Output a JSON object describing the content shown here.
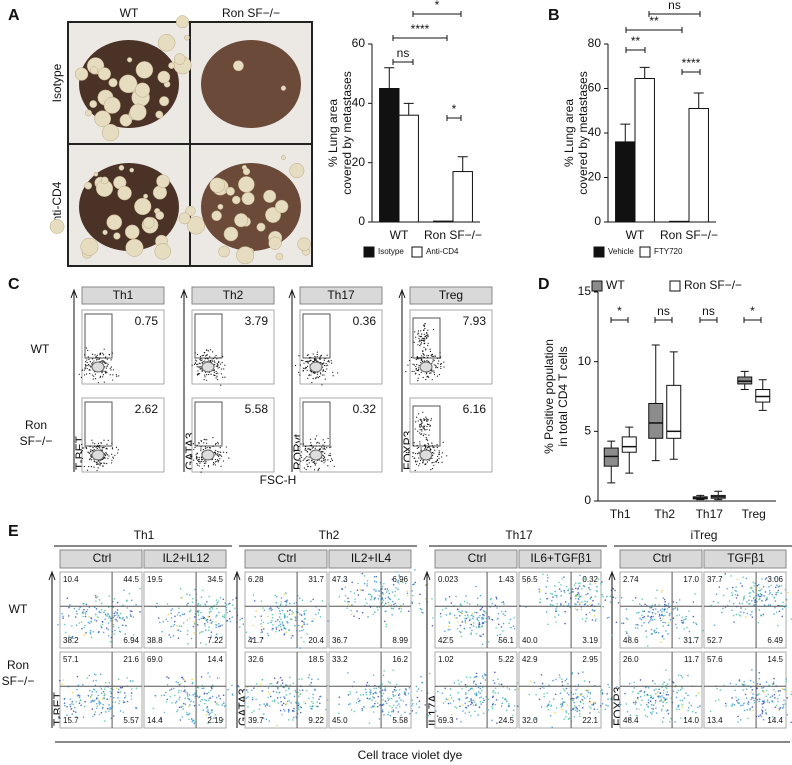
{
  "panel_labels": [
    "A",
    "B",
    "C",
    "D",
    "E"
  ],
  "panel_a": {
    "columns": [
      "WT",
      "Ron SF−/−"
    ],
    "rows": [
      "Isotype",
      "Anti-CD4"
    ]
  },
  "chart_data": [
    {
      "type": "bar",
      "ylabel": [
        "% Lung area",
        "covered by metastases"
      ],
      "categories": [
        "WT",
        "Ron SF−/−"
      ],
      "series": [
        {
          "name": "Isotype",
          "color": "#111111",
          "values": [
            45,
            0.3
          ],
          "errors": [
            7,
            null
          ]
        },
        {
          "name": "Anti-CD4",
          "color": "#ffffff",
          "values": [
            36,
            17
          ],
          "errors": [
            4,
            5
          ]
        }
      ],
      "ylim": [
        0,
        60
      ],
      "yticks": [
        0,
        20,
        40,
        60
      ],
      "annotations": [
        "ns",
        "****",
        "*",
        "*"
      ]
    },
    {
      "type": "bar",
      "ylabel": [
        "% Lung area",
        "covered by metastases"
      ],
      "categories": [
        "WT",
        "Ron SF−/−"
      ],
      "series": [
        {
          "name": "Vehicle",
          "color": "#111111",
          "values": [
            36,
            0.3
          ],
          "errors": [
            8,
            null
          ]
        },
        {
          "name": "FTY720",
          "color": "#ffffff",
          "values": [
            64.5,
            51
          ],
          "errors": [
            5,
            7
          ]
        }
      ],
      "ylim": [
        0,
        80
      ],
      "yticks": [
        0,
        20,
        40,
        60,
        80
      ],
      "annotations": [
        "ns",
        "**",
        "**",
        "****"
      ]
    },
    {
      "type": "box",
      "ylabel": [
        "% Positive population",
        "in total CD4 T cells"
      ],
      "categories": [
        "Th1",
        "Th2",
        "Th17",
        "Treg"
      ],
      "series": [
        {
          "name": "WT",
          "color": "#8c8c8c",
          "stats": [
            [
              1.3,
              2.5,
              3.2,
              3.8,
              4.3
            ],
            [
              2.9,
              4.5,
              5.6,
              7.0,
              11.2
            ],
            [
              0.1,
              0.15,
              0.2,
              0.3,
              0.4
            ],
            [
              8.0,
              8.4,
              8.6,
              8.9,
              9.3
            ]
          ]
        },
        {
          "name": "Ron SF−/−",
          "color": "#ffffff",
          "stats": [
            [
              2.0,
              3.5,
              3.9,
              4.6,
              5.3
            ],
            [
              3.0,
              4.5,
              5.0,
              8.3,
              10.7
            ],
            [
              0.1,
              0.2,
              0.3,
              0.4,
              0.7
            ],
            [
              6.5,
              7.1,
              7.5,
              8.0,
              8.7
            ]
          ]
        }
      ],
      "ylim": [
        0,
        15
      ],
      "yticks": [
        0,
        5,
        10,
        15
      ],
      "annotations": [
        "*",
        "ns",
        "ns",
        "*"
      ]
    }
  ],
  "panel_c": {
    "columns": [
      "Th1",
      "Th2",
      "Th17",
      "Treg"
    ],
    "rows": [
      [
        "WT"
      ],
      [
        "Ron",
        "SF−/−"
      ]
    ],
    "y_labels": [
      "T-BET",
      "GATA3",
      "RORγt",
      "FOXP3"
    ],
    "x_label": "FSC-H",
    "values": [
      [
        "0.75",
        "3.79",
        "0.36",
        "7.93"
      ],
      [
        "2.62",
        "5.58",
        "0.32",
        "6.16"
      ]
    ]
  },
  "panel_e": {
    "rows": [
      [
        "WT"
      ],
      [
        "Ron",
        "SF−/−"
      ]
    ],
    "x_label": "Cell trace violet dye",
    "groups": [
      {
        "title": "Th1",
        "columns": [
          "Ctrl",
          "IL2+IL12"
        ],
        "y_label": "T-BET",
        "values": [
          [
            [
              "10.4",
              "44.5",
              "38.2",
              "6.94"
            ],
            [
              "19.5",
              "34.5",
              "38.8",
              "7.22"
            ]
          ],
          [
            [
              "57.1",
              "21.6",
              "15.7",
              "5.57"
            ],
            [
              "69.0",
              "14.4",
              "14.4",
              "2.19"
            ]
          ]
        ]
      },
      {
        "title": "Th2",
        "columns": [
          "Ctrl",
          "IL2+IL4"
        ],
        "y_label": "GATA3",
        "values": [
          [
            [
              "6.28",
              "31.7",
              "41.7",
              "20.4"
            ],
            [
              "47.3",
              "6.96",
              "36.7",
              "8.99"
            ]
          ],
          [
            [
              "32.6",
              "18.5",
              "39.7",
              "9.22"
            ],
            [
              "33.2",
              "16.2",
              "45.0",
              "5.58"
            ]
          ]
        ]
      },
      {
        "title": "Th17",
        "columns": [
          "Ctrl",
          "IL6+TGFβ1"
        ],
        "y_label": "IL17A",
        "values": [
          [
            [
              "0.023",
              "1.43",
              "42.5",
              "56.1"
            ],
            [
              "56.5",
              "0.32",
              "40.0",
              "3.19"
            ]
          ],
          [
            [
              "1.02",
              "5.22",
              "69.3",
              "24.5"
            ],
            [
              "42.9",
              "2.95",
              "32.0",
              "22.1"
            ]
          ]
        ]
      },
      {
        "title": "iTreg",
        "columns": [
          "Ctrl",
          "TGFβ1"
        ],
        "y_label": "FOXP3",
        "values": [
          [
            [
              "2.74",
              "17.0",
              "48.6",
              "31.7"
            ],
            [
              "37.7",
              "3.06",
              "52.7",
              "6.49"
            ]
          ],
          [
            [
              "26.0",
              "11.7",
              "48.4",
              "14.0"
            ],
            [
              "57.6",
              "14.5",
              "13.4",
              "14.4"
            ]
          ]
        ]
      }
    ]
  }
}
